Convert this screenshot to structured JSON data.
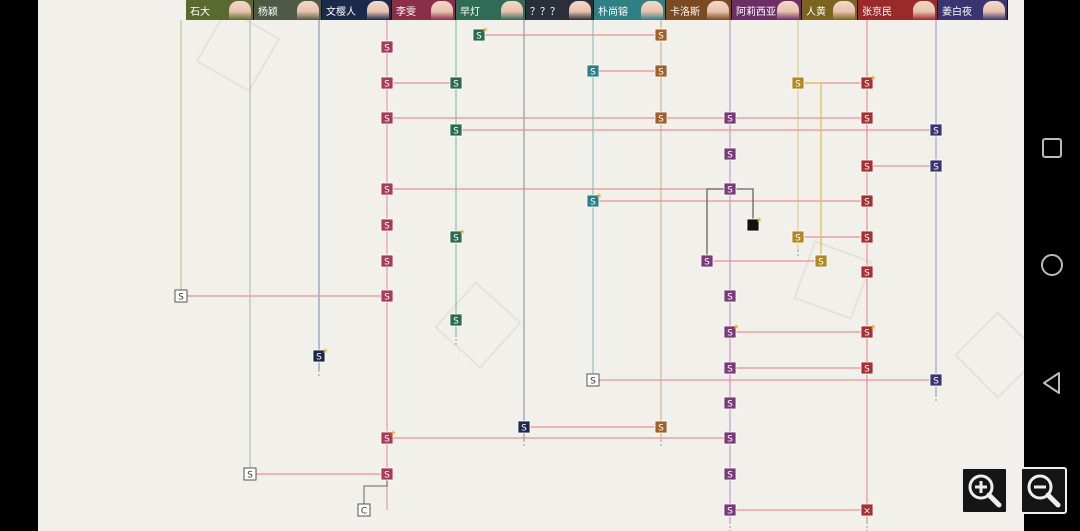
{
  "characters": [
    {
      "name": "石大",
      "color": "#5a6a2e"
    },
    {
      "name": "杨颖",
      "color": "#4f5a45"
    },
    {
      "name": "文樱人",
      "color": "#1b2a4a"
    },
    {
      "name": "李雯",
      "color": "#8a2e4a"
    },
    {
      "name": "早灯",
      "color": "#2f6b55"
    },
    {
      "name": "？？？",
      "color": "#2a2f3a"
    },
    {
      "name": "朴尚镕",
      "color": "#2f7f85"
    },
    {
      "name": "卡洛斯",
      "color": "#7a4a22"
    },
    {
      "name": "阿莉西亚",
      "color": "#6b2f66"
    },
    {
      "name": "人黄",
      "color": "#7a6420"
    },
    {
      "name": "张京民",
      "color": "#9a2a2a"
    },
    {
      "name": "姜白夜",
      "color": "#3a3570"
    }
  ],
  "node_labels": {
    "scene": "S",
    "choice": "C",
    "ending": "×"
  },
  "palette": {
    "background": "#f2f0ea",
    "link_line": "#e89090",
    "branch_line": "#777777"
  },
  "controls": {
    "zoom_in_icon": "zoom-in-icon",
    "zoom_out_icon": "zoom-out-icon",
    "nav_icons": [
      "square-icon",
      "circle-icon",
      "back-triangle-icon"
    ]
  }
}
